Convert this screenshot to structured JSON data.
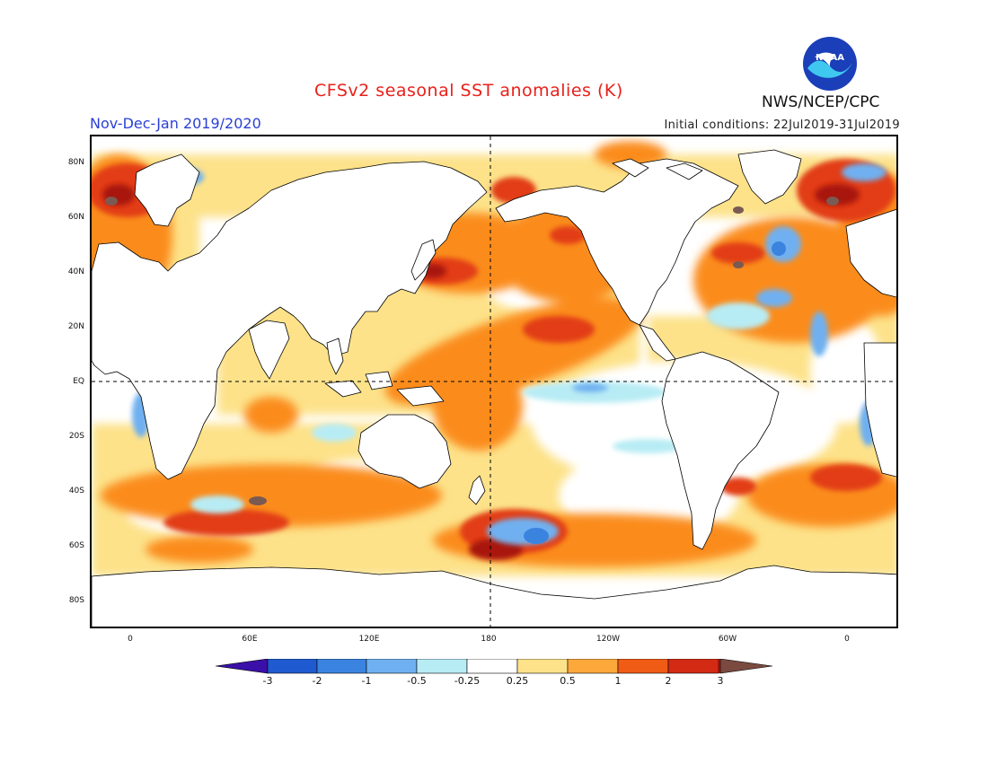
{
  "header": {
    "title": "CFSv2 seasonal SST anomalies (K)",
    "period": "Nov-Dec-Jan 2019/2020",
    "initial_conditions": "Initial conditions: 22Jul2019-31Jul2019",
    "agency": "NWS/NCEP/CPC",
    "logo_text": "NOAA"
  },
  "axes": {
    "lat_labels": [
      "80N",
      "60N",
      "40N",
      "20N",
      "EQ",
      "20S",
      "40S",
      "60S",
      "80S"
    ],
    "lon_labels": [
      "0",
      "60E",
      "120E",
      "180",
      "120W",
      "60W",
      "0"
    ]
  },
  "colorbar": {
    "labels": [
      "-3",
      "-2",
      "-1",
      "-0.5",
      "-0.25",
      "0.25",
      "0.5",
      "1",
      "2",
      "3"
    ],
    "colors": [
      "#3a10a8",
      "#1f5ad0",
      "#3a84e0",
      "#6fb0f0",
      "#b8ecf4",
      "#ffffff",
      "#fde28a",
      "#fda83a",
      "#f05b16",
      "#d32a14",
      "#a8120f",
      "#7a4a40"
    ]
  },
  "legend_colors": {
    "warm_light": "#fde28a",
    "warm_mid": "#fb8c1e",
    "warm_strong": "#e23c14",
    "warm_extreme": "#a8120f",
    "above_3": "#7a5a52",
    "cool_light": "#b8ecf4",
    "cool_mid": "#6fb0f0",
    "cool_strong": "#3a84e0",
    "land": "#ffffff",
    "coast": "#000000"
  }
}
